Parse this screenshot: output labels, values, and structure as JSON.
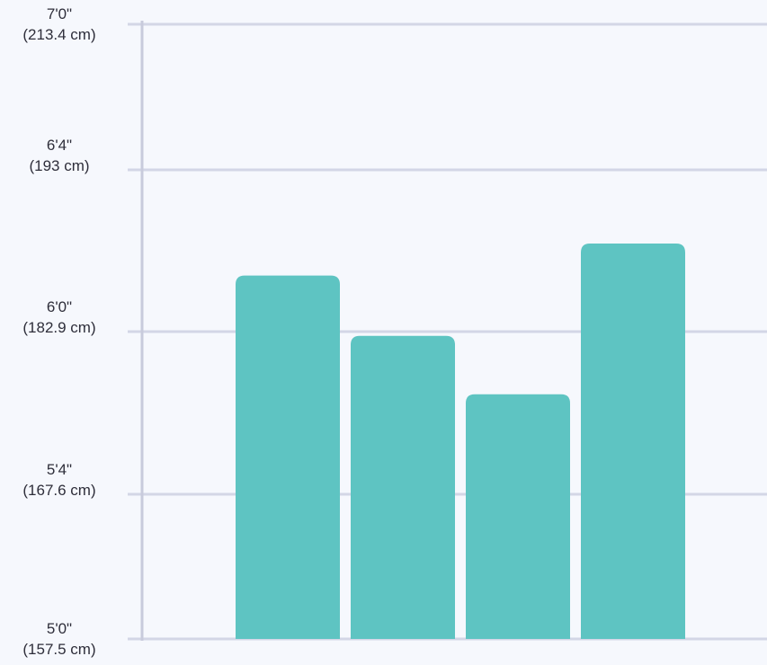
{
  "chart_data": {
    "type": "bar",
    "title": "",
    "xlabel": "",
    "ylabel": "",
    "y_unit": "cm",
    "ylim": [
      157.5,
      213.4
    ],
    "grid": true,
    "legend": "none",
    "y_ticks": [
      {
        "value": 157.5,
        "label": "5'0\"",
        "sublabel": "(157.5 cm)"
      },
      {
        "value": 167.6,
        "label": "5'4\"",
        "sublabel": "(167.6 cm)"
      },
      {
        "value": 182.9,
        "label": "6'0\"",
        "sublabel": "(182.9 cm)"
      },
      {
        "value": 193.0,
        "label": "6'4\"",
        "sublabel": "(193 cm)"
      },
      {
        "value": 213.4,
        "label": "7'0\"",
        "sublabel": "(213.4 cm)"
      }
    ],
    "categories": [
      "",
      "",
      "",
      ""
    ],
    "values": [
      186.4,
      182.5,
      177.0,
      188.4
    ]
  },
  "colors": {
    "bar": "#5ec4c2",
    "grid": "#d3d6e6",
    "axis": "#c8cbdc",
    "background": "#f6f8fd"
  }
}
